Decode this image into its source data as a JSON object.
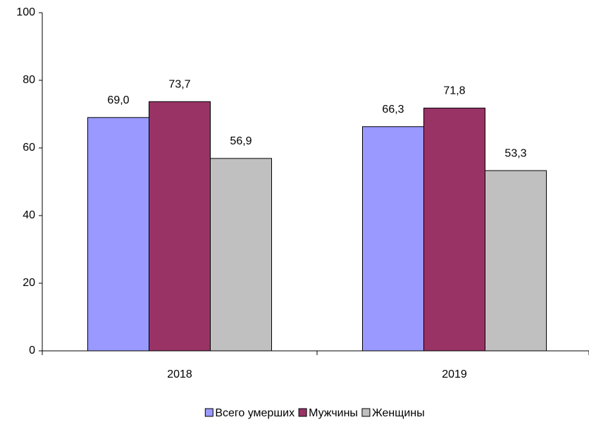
{
  "chart_data": {
    "type": "bar",
    "categories": [
      "2018",
      "2019"
    ],
    "series": [
      {
        "name": "Всего умерших",
        "color": "#9999ff",
        "values": [
          69.0,
          66.3
        ],
        "value_labels": [
          "69,0",
          "66,3"
        ]
      },
      {
        "name": "Мужчины",
        "color": "#993366",
        "values": [
          73.7,
          71.8
        ],
        "value_labels": [
          "73,7",
          "71,8"
        ]
      },
      {
        "name": "Женщины",
        "color": "#c0c0c0",
        "values": [
          56.9,
          53.3
        ],
        "value_labels": [
          "56,9",
          "53,3"
        ]
      }
    ],
    "ylim": [
      0,
      100
    ],
    "yticks": [
      0,
      20,
      40,
      60,
      80,
      100
    ],
    "grid": false,
    "legend": "bottom"
  }
}
